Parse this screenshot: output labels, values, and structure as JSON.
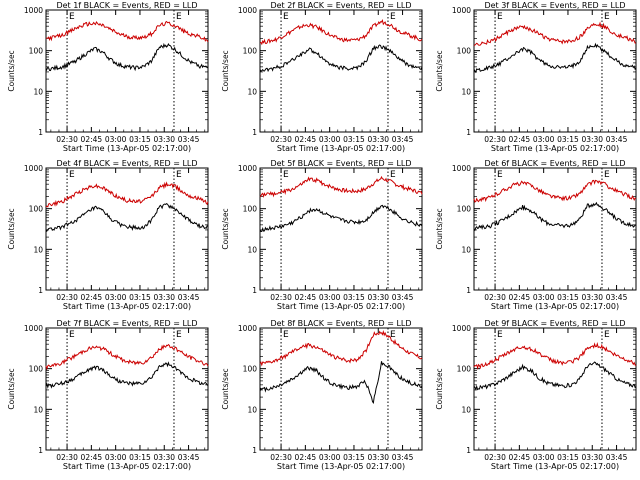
{
  "chart_data": [
    {
      "type": "line",
      "title": "Det 1f BLACK = Events, RED = LLD",
      "xlabel": "Start Time (13-Apr-05 02:17:00)",
      "ylabel": "Counts/sec",
      "ylog": true,
      "ylim": [
        1,
        1000
      ],
      "xlim": [
        "02:17",
        "03:57"
      ],
      "xticks": [
        "02:30",
        "02:45",
        "03:00",
        "03:15",
        "03:30",
        "03:45"
      ],
      "yticks": [
        "1",
        "10",
        "100",
        "1000"
      ],
      "marker_lines": [
        "02:30",
        "03:36"
      ],
      "marker_flags": [
        "E",
        "E"
      ],
      "series": [
        {
          "color": "#cc0000",
          "values": [
            200,
            215,
            240,
            300,
            380,
            450,
            470,
            420,
            330,
            260,
            225,
            210,
            215,
            260,
            420,
            480,
            410,
            300,
            250,
            220,
            170
          ]
        },
        {
          "color": "#000000",
          "values": [
            35,
            37,
            40,
            48,
            62,
            85,
            112,
            92,
            60,
            45,
            40,
            38,
            40,
            55,
            120,
            140,
            105,
            70,
            50,
            42,
            38
          ]
        }
      ]
    },
    {
      "type": "line",
      "title": "Det 2f BLACK = Events, RED = LLD",
      "xlabel": "Start Time (13-Apr-05 02:17:00)",
      "ylabel": "Counts/sec",
      "ylog": true,
      "ylim": [
        1,
        1000
      ],
      "xlim": [
        "02:17",
        "03:57"
      ],
      "xticks": [
        "02:30",
        "02:45",
        "03:00",
        "03:15",
        "03:30",
        "03:45"
      ],
      "yticks": [
        "1",
        "10",
        "100",
        "1000"
      ],
      "marker_lines": [
        "02:30",
        "03:36"
      ],
      "marker_flags": [
        "E",
        "E"
      ],
      "series": [
        {
          "color": "#cc0000",
          "values": [
            160,
            170,
            190,
            240,
            310,
            390,
            430,
            380,
            290,
            220,
            190,
            180,
            185,
            230,
            400,
            520,
            450,
            320,
            260,
            220,
            180
          ]
        },
        {
          "color": "#000000",
          "values": [
            32,
            34,
            38,
            45,
            58,
            80,
            108,
            90,
            58,
            44,
            38,
            36,
            38,
            52,
            115,
            130,
            100,
            68,
            48,
            40,
            36
          ]
        }
      ]
    },
    {
      "type": "line",
      "title": "Det 3f BLACK = Events, RED = LLD",
      "xlabel": "Start Time (13-Apr-05 02:17:00)",
      "ylabel": "Counts/sec",
      "ylog": true,
      "ylim": [
        1,
        1000
      ],
      "xlim": [
        "02:17",
        "03:57"
      ],
      "xticks": [
        "02:30",
        "02:45",
        "03:00",
        "03:15",
        "03:30",
        "03:45"
      ],
      "yticks": [
        "1",
        "10",
        "100",
        "1000"
      ],
      "marker_lines": [
        "02:30",
        "03:36"
      ],
      "marker_flags": [
        "E",
        "E"
      ],
      "series": [
        {
          "color": "#cc0000",
          "values": [
            140,
            150,
            170,
            210,
            270,
            340,
            380,
            340,
            260,
            200,
            175,
            165,
            170,
            210,
            360,
            470,
            400,
            290,
            230,
            200,
            160
          ]
        },
        {
          "color": "#000000",
          "values": [
            33,
            35,
            38,
            46,
            60,
            82,
            110,
            92,
            60,
            45,
            40,
            38,
            40,
            54,
            118,
            135,
            102,
            70,
            50,
            42,
            38
          ]
        }
      ]
    },
    {
      "type": "line",
      "title": "Det 4f BLACK = Events, RED = LLD",
      "xlabel": "Start Time (13-Apr-05 02:17:00)",
      "ylabel": "Counts/sec",
      "ylog": true,
      "ylim": [
        1,
        1000
      ],
      "xlim": [
        "02:17",
        "03:57"
      ],
      "xticks": [
        "02:30",
        "02:45",
        "03:00",
        "03:15",
        "03:30",
        "03:45"
      ],
      "yticks": [
        "1",
        "10",
        "100",
        "1000"
      ],
      "marker_lines": [
        "02:30",
        "03:36"
      ],
      "marker_flags": [
        "E",
        "E"
      ],
      "series": [
        {
          "color": "#cc0000",
          "values": [
            120,
            130,
            150,
            190,
            250,
            320,
            370,
            330,
            250,
            190,
            160,
            150,
            155,
            200,
            330,
            410,
            350,
            250,
            200,
            170,
            140
          ]
        },
        {
          "color": "#000000",
          "values": [
            30,
            32,
            36,
            44,
            56,
            78,
            105,
            88,
            56,
            42,
            36,
            34,
            36,
            50,
            110,
            125,
            98,
            65,
            46,
            38,
            34
          ]
        }
      ]
    },
    {
      "type": "line",
      "title": "Det 5f BLACK = Events, RED = LLD",
      "xlabel": "Start Time (13-Apr-05 02:17:00)",
      "ylabel": "Counts/sec",
      "ylog": true,
      "ylim": [
        1,
        1000
      ],
      "xlim": [
        "02:17",
        "03:57"
      ],
      "xticks": [
        "02:30",
        "02:45",
        "03:00",
        "03:15",
        "03:30",
        "03:45"
      ],
      "yticks": [
        "1",
        "10",
        "100",
        "1000"
      ],
      "marker_lines": [
        "02:30",
        "03:36"
      ],
      "marker_flags": [
        "E",
        "E"
      ],
      "series": [
        {
          "color": "#cc0000",
          "values": [
            220,
            225,
            235,
            260,
            300,
            380,
            520,
            500,
            400,
            330,
            290,
            270,
            270,
            300,
            420,
            560,
            480,
            380,
            320,
            280,
            240
          ]
        },
        {
          "color": "#000000",
          "values": [
            30,
            32,
            34,
            38,
            45,
            60,
            90,
            95,
            75,
            60,
            52,
            48,
            46,
            50,
            80,
            120,
            100,
            70,
            52,
            44,
            38
          ]
        }
      ]
    },
    {
      "type": "line",
      "title": "Det 6f BLACK = Events, RED = LLD",
      "xlabel": "Start Time (13-Apr-05 02:17:00)",
      "ylabel": "Counts/sec",
      "ylog": true,
      "ylim": [
        1,
        1000
      ],
      "xlim": [
        "02:17",
        "03:57"
      ],
      "xticks": [
        "02:30",
        "02:45",
        "03:00",
        "03:15",
        "03:30",
        "03:45"
      ],
      "yticks": [
        "1",
        "10",
        "100",
        "1000"
      ],
      "marker_lines": [
        "02:30",
        "03:36"
      ],
      "marker_flags": [
        "E",
        "E"
      ],
      "series": [
        {
          "color": "#cc0000",
          "values": [
            160,
            170,
            190,
            240,
            310,
            390,
            430,
            380,
            290,
            220,
            190,
            180,
            185,
            230,
            380,
            480,
            420,
            310,
            250,
            210,
            170
          ]
        },
        {
          "color": "#000000",
          "values": [
            33,
            35,
            38,
            46,
            60,
            82,
            110,
            92,
            60,
            45,
            40,
            38,
            40,
            54,
            118,
            135,
            102,
            70,
            50,
            42,
            38
          ]
        }
      ]
    },
    {
      "type": "line",
      "title": "Det 7f BLACK = Events, RED = LLD",
      "xlabel": "Start Time (13-Apr-05 02:17:00)",
      "ylabel": "Counts/sec",
      "ylog": true,
      "ylim": [
        1,
        1000
      ],
      "xlim": [
        "02:17",
        "03:57"
      ],
      "xticks": [
        "02:30",
        "02:45",
        "03:00",
        "03:15",
        "03:30",
        "03:45"
      ],
      "yticks": [
        "1",
        "10",
        "100",
        "1000"
      ],
      "marker_lines": [
        "02:30",
        "03:36"
      ],
      "marker_flags": [
        "E",
        "E"
      ],
      "series": [
        {
          "color": "#cc0000",
          "values": [
            110,
            120,
            140,
            180,
            230,
            300,
            340,
            310,
            240,
            180,
            150,
            140,
            145,
            190,
            300,
            370,
            320,
            230,
            180,
            150,
            125
          ]
        },
        {
          "color": "#000000",
          "values": [
            38,
            40,
            44,
            52,
            66,
            88,
            110,
            95,
            65,
            50,
            44,
            42,
            44,
            58,
            115,
            130,
            100,
            72,
            54,
            46,
            40
          ]
        }
      ]
    },
    {
      "type": "line",
      "title": "Det 8f BLACK = Events, RED = LLD",
      "xlabel": "Start Time (13-Apr-05 02:17:00)",
      "ylabel": "Counts/sec",
      "ylog": true,
      "ylim": [
        1,
        1000
      ],
      "xlim": [
        "02:17",
        "03:57"
      ],
      "xticks": [
        "02:30",
        "02:45",
        "03:00",
        "03:15",
        "03:30",
        "03:45"
      ],
      "yticks": [
        "1",
        "10",
        "100",
        "1000"
      ],
      "marker_lines": [
        "02:30",
        "03:36"
      ],
      "marker_flags": [
        "E",
        "E"
      ],
      "series": [
        {
          "color": "#cc0000",
          "values": [
            130,
            140,
            160,
            200,
            260,
            330,
            380,
            340,
            260,
            200,
            170,
            160,
            170,
            260,
            700,
            800,
            600,
            380,
            280,
            220,
            180
          ]
        },
        {
          "color": "#000000",
          "values": [
            30,
            32,
            36,
            44,
            56,
            78,
            105,
            88,
            56,
            42,
            36,
            34,
            36,
            50,
            15,
            140,
            108,
            70,
            50,
            42,
            36
          ]
        }
      ]
    },
    {
      "type": "line",
      "title": "Det 9f BLACK = Events, RED = LLD",
      "xlabel": "Start Time (13-Apr-05 02:17:00)",
      "ylabel": "Counts/sec",
      "ylog": true,
      "ylim": [
        1,
        1000
      ],
      "xlim": [
        "02:17",
        "03:57"
      ],
      "xticks": [
        "02:30",
        "02:45",
        "03:00",
        "03:15",
        "03:30",
        "03:45"
      ],
      "yticks": [
        "1",
        "10",
        "100",
        "1000"
      ],
      "marker_lines": [
        "02:30",
        "03:36"
      ],
      "marker_flags": [
        "E",
        "E"
      ],
      "series": [
        {
          "color": "#cc0000",
          "values": [
            110,
            120,
            140,
            180,
            230,
            300,
            340,
            310,
            240,
            180,
            150,
            140,
            145,
            190,
            310,
            380,
            330,
            240,
            190,
            160,
            130
          ]
        },
        {
          "color": "#000000",
          "values": [
            33,
            35,
            38,
            46,
            60,
            82,
            110,
            92,
            60,
            45,
            40,
            38,
            40,
            54,
            118,
            135,
            102,
            70,
            50,
            42,
            38
          ]
        }
      ]
    }
  ]
}
